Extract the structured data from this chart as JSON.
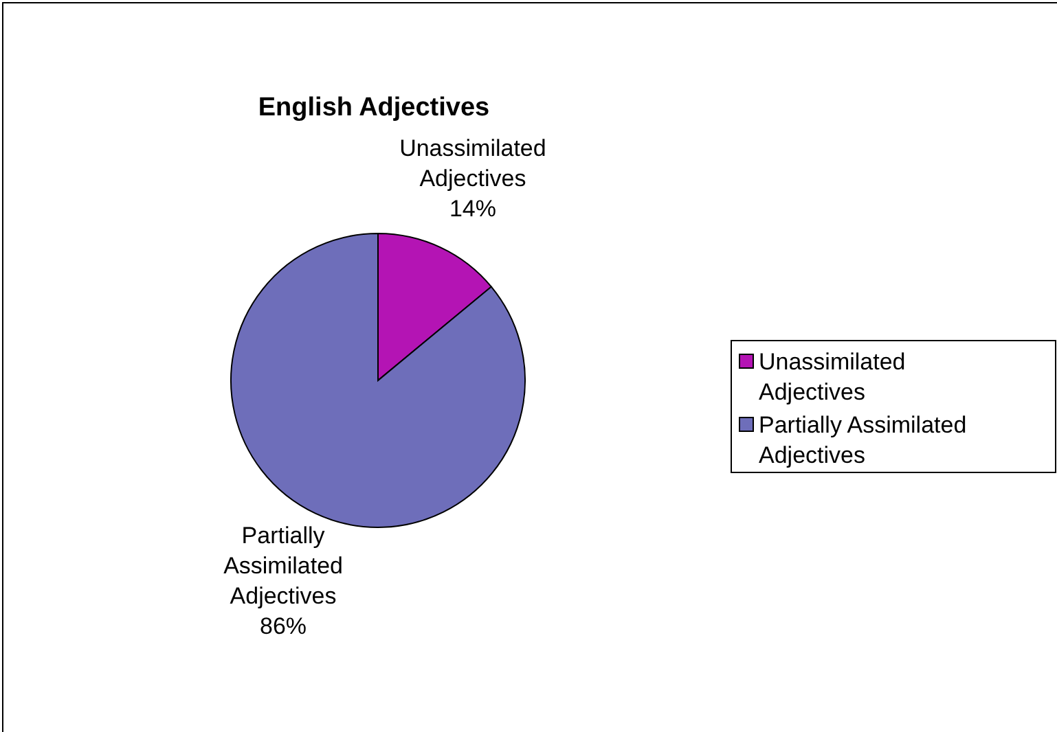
{
  "chart_data": {
    "type": "pie",
    "title": "English Adjectives",
    "categories": [
      "Unassimilated Adjectives",
      "Partially Assimilated Adjectives"
    ],
    "values": [
      14,
      86
    ],
    "value_labels": [
      "14%",
      "86%"
    ],
    "colors": [
      "#b414b4",
      "#6e6eba"
    ],
    "legend": "right"
  }
}
